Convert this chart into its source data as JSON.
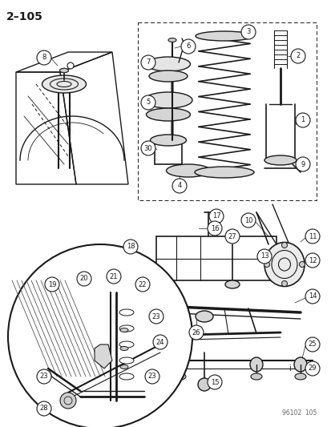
{
  "title": "2–105",
  "watermark": "96102  105",
  "bg_color": "#ffffff",
  "line_color": "#1a1a1a",
  "fig_width": 4.14,
  "fig_height": 5.33,
  "dpi": 100
}
